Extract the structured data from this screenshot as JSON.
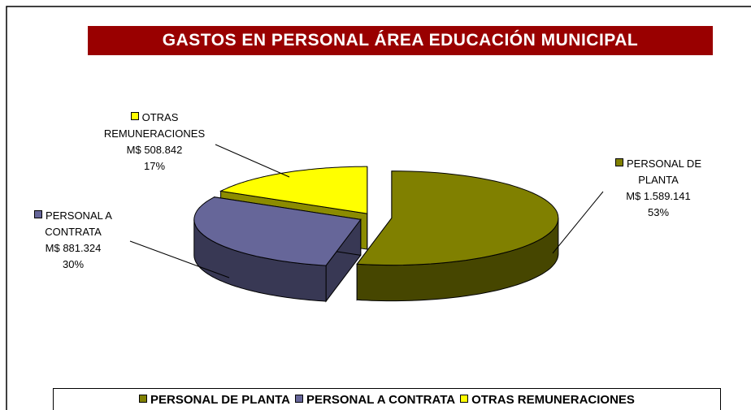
{
  "chart_data": {
    "type": "pie",
    "title": "GASTOS EN PERSONAL ÁREA EDUCACIÓN MUNICIPAL",
    "categories": [
      "PERSONAL DE PLANTA",
      "PERSONAL A CONTRATA",
      "OTRAS REMUNERACIONES"
    ],
    "values": [
      1589141,
      881324,
      508842
    ],
    "value_labels": [
      "M$ 1.589.141",
      "M$ 881.324",
      "M$ 508.842"
    ],
    "percentages": [
      53,
      30,
      17
    ],
    "percentage_labels": [
      "53%",
      "30%",
      "17%"
    ],
    "colors": [
      "#808000",
      "#666699",
      "#ffff00"
    ],
    "legend": "bottom"
  }
}
